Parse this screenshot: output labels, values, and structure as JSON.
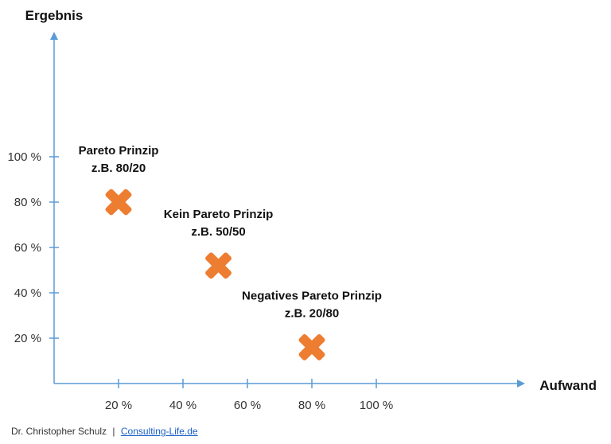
{
  "chart_data": {
    "type": "scatter",
    "xlabel": "Aufwand",
    "ylabel": "Ergebnis",
    "xlim": [
      0,
      120
    ],
    "ylim": [
      0,
      110
    ],
    "x_ticks": [
      20,
      40,
      60,
      80,
      100
    ],
    "x_tick_labels": [
      "20 %",
      "40 %",
      "60 %",
      "80 %",
      "100 %"
    ],
    "y_ticks": [
      20,
      40,
      60,
      80,
      100
    ],
    "y_tick_labels": [
      "20 %",
      "40 %",
      "60 %",
      "80 %",
      "100 %"
    ],
    "grid": false,
    "marker": "x",
    "colors": {
      "axis": "#5b9bd5",
      "marker": "#ed7d31"
    },
    "points": [
      {
        "x": 20,
        "y": 80,
        "label_line1": "Pareto Prinzip",
        "label_line2": "z.B. 80/20"
      },
      {
        "x": 51,
        "y": 52,
        "label_line1": "Kein Pareto Prinzip",
        "label_line2": "z.B. 50/50"
      },
      {
        "x": 80,
        "y": 16,
        "label_line1": "Negatives Pareto Prinzip",
        "label_line2": "z.B. 20/80"
      }
    ]
  },
  "footer": {
    "author": "Dr. Christopher Schulz",
    "separator": "|",
    "link": "Consulting-Life.de"
  }
}
